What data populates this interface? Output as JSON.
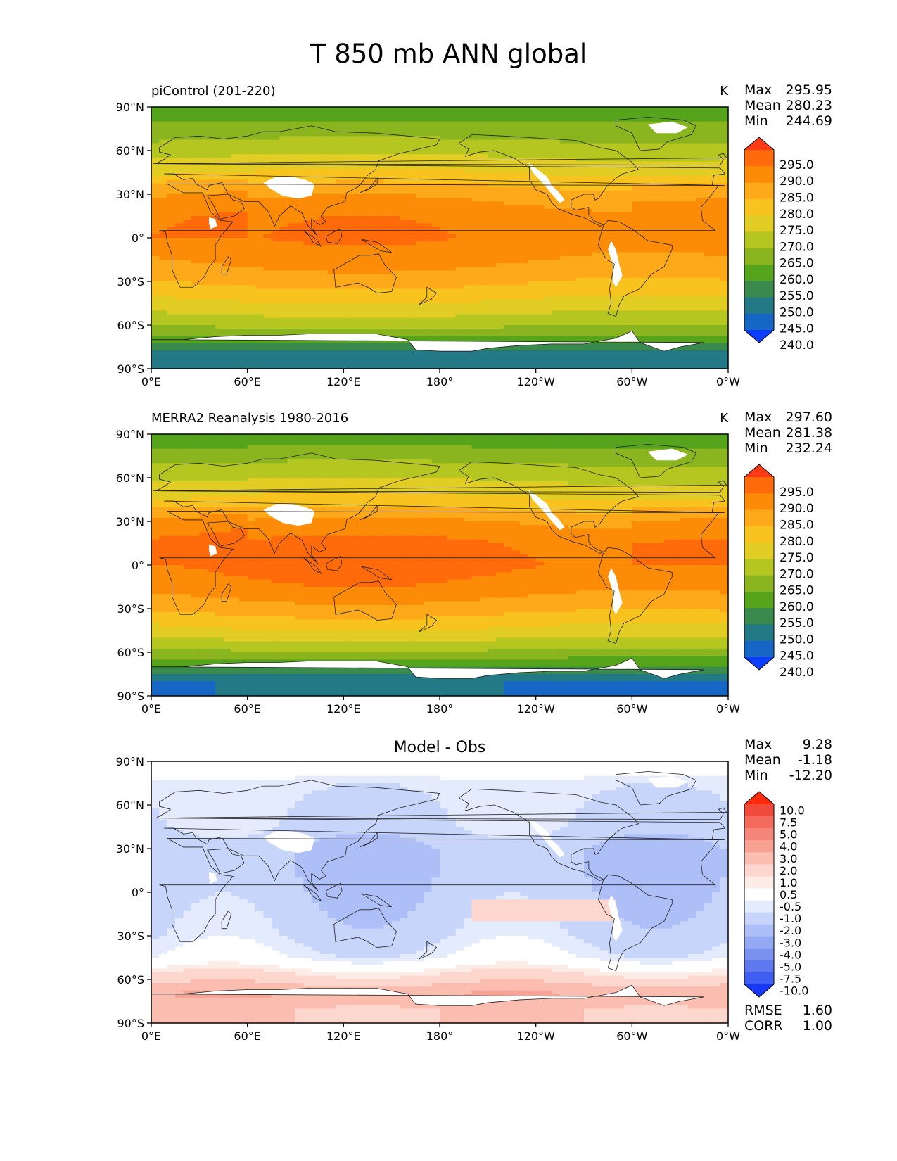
{
  "title": "T 850 mb ANN global",
  "panels": [
    {
      "left_title": "piControl (201-220)",
      "center_title": "",
      "units": "K",
      "stats": [
        {
          "label": "Max",
          "value": "295.95"
        },
        {
          "label": "Mean",
          "value": "280.23"
        },
        {
          "label": "Min",
          "value": "244.69"
        }
      ],
      "colorbar": {
        "labels": [
          "295.0",
          "290.0",
          "285.0",
          "280.0",
          "275.0",
          "270.0",
          "265.0",
          "260.0",
          "255.0",
          "250.0",
          "245.0",
          "240.0"
        ],
        "colors": [
          "#ff3a16",
          "#ff6a0a",
          "#fc8c08",
          "#fda91a",
          "#f8c31e",
          "#e2cd24",
          "#b5c621",
          "#8ab51f",
          "#56a31c",
          "#3a8a4e",
          "#237a86",
          "#1667c5",
          "#0b3dfa"
        ]
      },
      "footer": []
    },
    {
      "left_title": "MERRA2 Reanalysis 1980-2016",
      "center_title": "",
      "units": "K",
      "stats": [
        {
          "label": "Max",
          "value": "297.60"
        },
        {
          "label": "Mean",
          "value": "281.38"
        },
        {
          "label": "Min",
          "value": "232.24"
        }
      ],
      "colorbar": {
        "labels": [
          "295.0",
          "290.0",
          "285.0",
          "280.0",
          "275.0",
          "270.0",
          "265.0",
          "260.0",
          "255.0",
          "250.0",
          "245.0",
          "240.0"
        ],
        "colors": [
          "#ff3a16",
          "#ff6a0a",
          "#fc8c08",
          "#fda91a",
          "#f8c31e",
          "#e2cd24",
          "#b5c621",
          "#8ab51f",
          "#56a31c",
          "#3a8a4e",
          "#237a86",
          "#1667c5",
          "#0b3dfa"
        ]
      },
      "footer": []
    },
    {
      "left_title": "",
      "center_title": "Model - Obs",
      "units": "",
      "stats": [
        {
          "label": "Max",
          "value": "9.28"
        },
        {
          "label": "Mean",
          "value": "-1.18"
        },
        {
          "label": "Min",
          "value": "-12.20"
        }
      ],
      "colorbar": {
        "labels": [
          "10.0",
          "7.5",
          "5.0",
          "4.0",
          "3.0",
          "2.0",
          "1.0",
          "0.5",
          "-0.5",
          "-1.0",
          "-2.0",
          "-3.0",
          "-4.0",
          "-5.0",
          "-7.5",
          "-10.0"
        ],
        "colors": [
          "#ff2a0c",
          "#f04a3c",
          "#f46a5c",
          "#f5877a",
          "#f8a294",
          "#fbbdb0",
          "#fdd6cd",
          "#fdebe6",
          "#ffffff",
          "#e4ebfc",
          "#c8d5fa",
          "#aebff7",
          "#93a9f4",
          "#7a91f0",
          "#5e78ef",
          "#3f5ef2",
          "#1838f8"
        ]
      },
      "footer": [
        {
          "label": "RMSE",
          "value": "1.60"
        },
        {
          "label": "CORR",
          "value": "1.00"
        }
      ]
    }
  ],
  "chart_data": {
    "type": "heatmap",
    "title": "T 850 mb ANN global",
    "x_ticks": [
      "0°E",
      "60°E",
      "120°E",
      "180°",
      "120°W",
      "60°W",
      "0°W"
    ],
    "y_ticks": [
      "90°N",
      "60°N",
      "30°N",
      "0°",
      "30°S",
      "60°S",
      "90°S"
    ],
    "xlim": [
      0,
      360
    ],
    "ylim": [
      -90,
      90
    ],
    "series": [
      {
        "name": "piControl (201-220)",
        "units": "K",
        "max": 295.95,
        "mean": 280.23,
        "min": 244.69,
        "zonal_mean_by_lat": [
          [
            -80,
            248
          ],
          [
            -70,
            258
          ],
          [
            -60,
            266
          ],
          [
            -45,
            274
          ],
          [
            -30,
            281
          ],
          [
            -15,
            286
          ],
          [
            0,
            289
          ],
          [
            15,
            288
          ],
          [
            30,
            283
          ],
          [
            45,
            275
          ],
          [
            60,
            268
          ],
          [
            75,
            262
          ],
          [
            85,
            258
          ]
        ]
      },
      {
        "name": "MERRA2 Reanalysis 1980-2016",
        "units": "K",
        "max": 297.6,
        "mean": 281.38,
        "min": 232.24,
        "zonal_mean_by_lat": [
          [
            -80,
            245
          ],
          [
            -70,
            255
          ],
          [
            -60,
            264
          ],
          [
            -45,
            274
          ],
          [
            -30,
            282
          ],
          [
            -15,
            288
          ],
          [
            0,
            291
          ],
          [
            15,
            290
          ],
          [
            30,
            285
          ],
          [
            45,
            276
          ],
          [
            60,
            269
          ],
          [
            75,
            263
          ],
          [
            85,
            258
          ]
        ]
      },
      {
        "name": "Model - Obs",
        "max": 9.28,
        "mean": -1.18,
        "min": -12.2,
        "rmse": 1.6,
        "corr": 1.0,
        "zonal_mean_by_lat": [
          [
            -80,
            2.0
          ],
          [
            -70,
            3.0
          ],
          [
            -60,
            1.5
          ],
          [
            -45,
            -0.5
          ],
          [
            -30,
            -1.2
          ],
          [
            -15,
            -1.5
          ],
          [
            0,
            -1.8
          ],
          [
            15,
            -2.0
          ],
          [
            30,
            -2.0
          ],
          [
            45,
            -1.2
          ],
          [
            60,
            -1.0
          ],
          [
            75,
            -0.8
          ],
          [
            85,
            0.0
          ]
        ]
      }
    ]
  }
}
